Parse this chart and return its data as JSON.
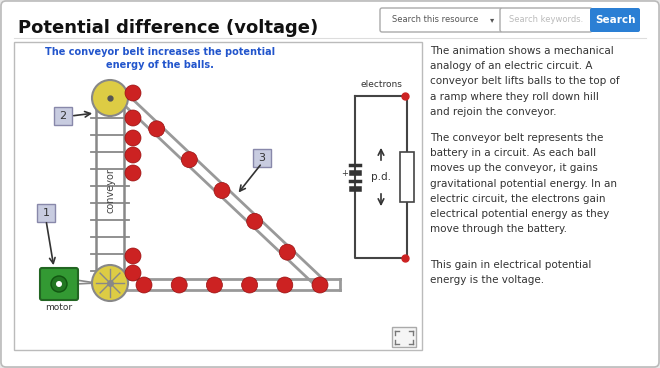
{
  "title": "Potential difference (voltage)",
  "bg_color": "#e8e8e8",
  "card_bg": "#ffffff",
  "caption": "The conveyor belt increases the potential\nenergy of the balls.",
  "caption_color": "#2255cc",
  "conveyor_label": "conveyor",
  "motor_label": "motor",
  "electrons_label": "electrons",
  "pd_label": "p.d.",
  "search_placeholder": "Search this resource",
  "search_kw": "Search keywords.",
  "search_btn": "Search",
  "text_para1": "The animation shows a mechanical\nanalogy of an electric circuit. A\nconveyor belt lifts balls to the top of\na ramp where they roll down hill\nand rejoin the conveyor.",
  "text_para2": "The conveyor belt represents the\nbattery in a circuit. As each ball\nmoves up the conveyor, it gains\ngravitational potential energy. In an\nelectric circuit, the electrons gain\nelectrical potential energy as they\nmove through the battery.",
  "text_para3": "This gain in electrical potential\nenergy is the voltage.",
  "ball_color": "#cc2222",
  "pulley_color": "#ddcc44",
  "motor_color": "#339933",
  "belt_color": "#888888",
  "ramp_color": "#aaaaaa",
  "label_box_bg": "#c8cce0",
  "circuit_color": "#444444",
  "red_dot": "#cc2222",
  "text_color": "#333333"
}
